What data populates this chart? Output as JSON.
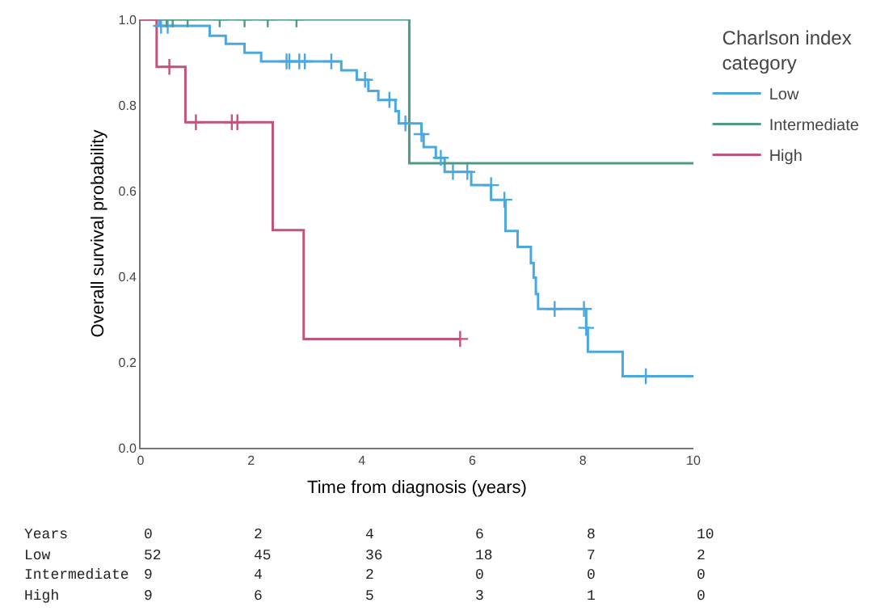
{
  "chart_data": {
    "type": "step",
    "xlabel": "Time from diagnosis (years)",
    "ylabel": "Overall survival probability",
    "legend_title": "Charlson index category",
    "legend": "top right",
    "grid": false,
    "xlim": [
      0,
      10
    ],
    "xticks": [
      0,
      2,
      4,
      6,
      8,
      10
    ],
    "ylim": [
      0,
      1
    ],
    "yticks": [
      {
        "value": 0,
        "label": "0.0"
      },
      {
        "value": 0.2,
        "label": "0.2"
      },
      {
        "value": 0.4,
        "label": "0.4"
      },
      {
        "value": 0.6,
        "label": "0.6"
      },
      {
        "value": 0.8,
        "label": "0.8"
      },
      {
        "value": 1,
        "label": "1.0"
      }
    ],
    "series": [
      {
        "name": "Low",
        "color": "#4aa8e0",
        "x": [
          0,
          0.34,
          1.25,
          1.54,
          1.88,
          2.18,
          3.63,
          3.91,
          4.12,
          4.3,
          4.61,
          4.67,
          5.08,
          5.12,
          5.34,
          5.5,
          5.98,
          6.34,
          6.6,
          6.82,
          7.06,
          7.11,
          7.15,
          7.19,
          8.06,
          8.09,
          8.72,
          10
        ],
        "values": [
          1,
          0.985,
          0.962,
          0.943,
          0.922,
          0.902,
          0.881,
          0.859,
          0.833,
          0.812,
          0.786,
          0.757,
          0.732,
          0.702,
          0.677,
          0.644,
          0.613,
          0.579,
          0.506,
          0.469,
          0.431,
          0.397,
          0.359,
          0.324,
          0.28,
          0.224,
          0.167,
          0.167
        ]
      },
      {
        "name": "Intermediate",
        "color": "#4f9a86",
        "x": [
          0,
          4.86,
          10
        ],
        "values": [
          1,
          0.664,
          0.664
        ]
      },
      {
        "name": "High",
        "color": "#c0547a",
        "x": [
          0,
          0.29,
          0.81,
          2.39,
          2.95,
          5.78
        ],
        "values": [
          1,
          0.889,
          0.76,
          0.508,
          0.254,
          0.254
        ]
      },
      {
        "type": "scatter",
        "marker": "cross",
        "color": "#4aa8e0",
        "x": [
          0.37,
          0.49,
          2.64,
          2.69,
          2.87,
          2.97,
          3.45,
          4.06,
          4.5,
          4.79,
          5.08,
          5.43,
          5.65,
          5.91,
          6.34,
          6.58,
          7.49,
          8.02,
          8.06,
          9.14
        ],
        "values": [
          0.985,
          0.985,
          0.902,
          0.902,
          0.902,
          0.902,
          0.902,
          0.859,
          0.812,
          0.757,
          0.732,
          0.677,
          0.644,
          0.644,
          0.613,
          0.579,
          0.324,
          0.324,
          0.28,
          0.167
        ]
      },
      {
        "type": "scatter",
        "marker": "cross",
        "color": "#4f9a86",
        "x": [
          0.47,
          0.58,
          0.85,
          1.43,
          1.88,
          2.3,
          2.82
        ],
        "values": [
          1,
          1,
          1,
          1,
          1,
          1,
          1
        ]
      },
      {
        "type": "scatter",
        "marker": "cross",
        "color": "#c0547a",
        "x": [
          0.52,
          1,
          1.65,
          1.75,
          5.78
        ],
        "values": [
          0.889,
          0.76,
          0.76,
          0.76,
          0.254
        ]
      }
    ],
    "annotations": [
      "Years",
      "0",
      "2",
      "4",
      "6",
      "8",
      "10",
      "Low",
      "52",
      "45",
      "36",
      "18",
      "7",
      "2",
      "Intermediate",
      "9",
      "4",
      "2",
      "0",
      "0",
      "0",
      "High",
      "9",
      "6",
      "5",
      "3",
      "1",
      "0"
    ]
  }
}
